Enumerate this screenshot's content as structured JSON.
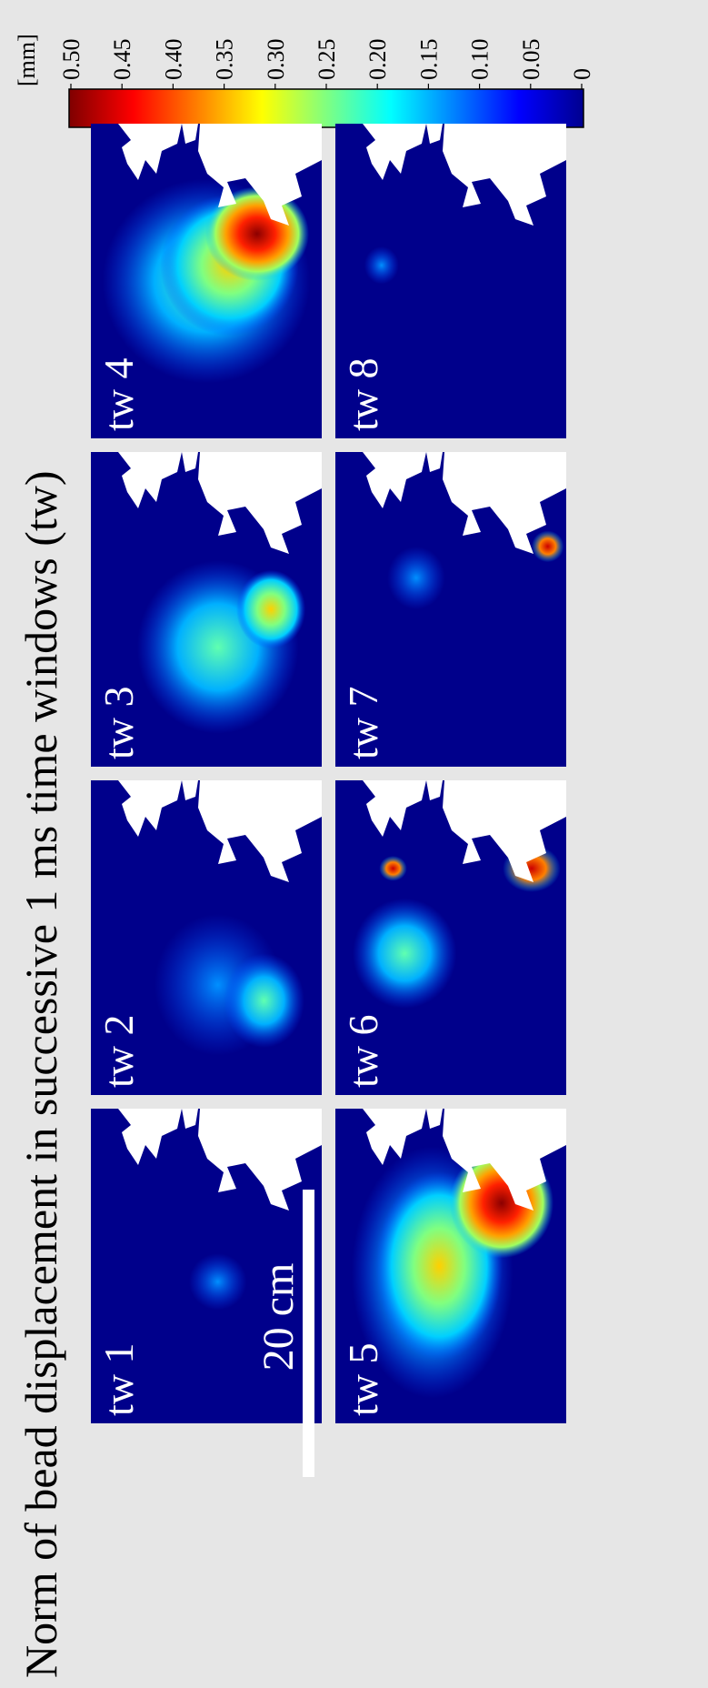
{
  "title": "Norm of bead displacement in successive 1 ms time windows (tw)",
  "colorbar": {
    "unit": "[mm]",
    "ticks": [
      "0.50",
      "0.45",
      "0.40",
      "0.35",
      "0.30",
      "0.25",
      "0.20",
      "0.15",
      "0.10",
      "0.05",
      "0"
    ],
    "colors": [
      "#7f0000",
      "#ff0000",
      "#ff8000",
      "#ffff00",
      "#80ff80",
      "#00ffff",
      "#0080ff",
      "#0000ff",
      "#00008f"
    ]
  },
  "scale_bar": {
    "label": "20 cm"
  },
  "panels": [
    {
      "label": "tw 1"
    },
    {
      "label": "tw 2"
    },
    {
      "label": "tw 3"
    },
    {
      "label": "tw 4"
    },
    {
      "label": "tw 5"
    },
    {
      "label": "tw 6"
    },
    {
      "label": "tw 7"
    },
    {
      "label": "tw 8"
    }
  ]
}
